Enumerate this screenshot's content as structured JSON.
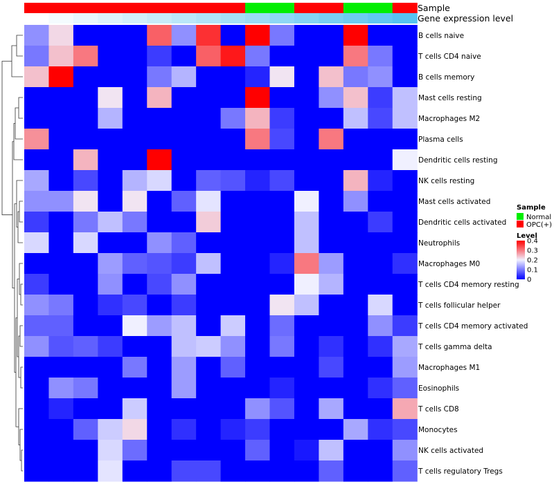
{
  "chart_data": {
    "type": "heatmap",
    "rows": [
      "B cells naive",
      "T cells CD4 naive",
      "B cells memory",
      "Mast cells resting",
      "Macrophages M2",
      "Plasma cells",
      "Dendritic cells resting",
      "NK cells resting",
      "Mast cells activated",
      "Dendritic cells activated",
      "Neutrophils",
      "Macrophages M0",
      "T cells CD4 memory resting",
      "T cells follicular helper",
      "T cells CD4 memory activated",
      "T cells gamma delta",
      "Macrophages M1",
      "Eosinophils",
      "T cells CD8",
      "Monocytes",
      "NK cells activated",
      "T cells regulatory  Tregs"
    ],
    "column_samples": [
      "OPC(+)",
      "OPC(+)",
      "OPC(+)",
      "OPC(+)",
      "OPC(+)",
      "OPC(+)",
      "OPC(+)",
      "OPC(+)",
      "OPC(+)",
      "Normal",
      "Normal",
      "OPC(+)",
      "OPC(+)",
      "Normal",
      "Normal",
      "OPC(+)"
    ],
    "gene_expression_level": [
      0.0,
      0.02,
      0.04,
      0.06,
      0.08,
      0.1,
      0.12,
      0.14,
      0.16,
      0.18,
      0.2,
      0.22,
      0.24,
      0.26,
      0.28,
      0.3
    ],
    "values": [
      [
        0.12,
        0.22,
        0,
        0,
        0,
        0.32,
        0.12,
        0.36,
        0,
        0.42,
        0.1,
        0,
        0,
        0.42,
        0,
        0
      ],
      [
        0.1,
        0.24,
        0.3,
        0,
        0,
        0.05,
        0,
        0.32,
        0.38,
        0.1,
        0,
        0,
        0,
        0.3,
        0.1,
        0
      ],
      [
        0.24,
        0.4,
        0,
        0,
        0,
        0.1,
        0.15,
        0,
        0,
        0.03,
        0.21,
        0,
        0.24,
        0.1,
        0.12,
        0
      ],
      [
        0,
        0,
        0,
        0.21,
        0,
        0.25,
        0,
        0,
        0,
        0.4,
        0,
        0,
        0.12,
        0.24,
        0.05,
        0.16
      ],
      [
        0,
        0,
        0,
        0.15,
        0,
        0,
        0,
        0,
        0.1,
        0.25,
        0.05,
        0,
        0,
        0.16,
        0.06,
        0.16
      ],
      [
        0.28,
        0,
        0,
        0,
        0,
        0,
        0,
        0,
        0,
        0.3,
        0.06,
        0,
        0.3,
        0,
        0,
        0
      ],
      [
        0,
        0,
        0.25,
        0,
        0,
        0.4,
        0,
        0,
        0,
        0,
        0,
        0,
        0,
        0,
        0,
        0.2
      ],
      [
        0.14,
        0,
        0.06,
        0,
        0.15,
        0.18,
        0,
        0.08,
        0.07,
        0.03,
        0.06,
        0,
        0,
        0.25,
        0.03,
        0
      ],
      [
        0.12,
        0.12,
        0.21,
        0,
        0.21,
        0,
        0.08,
        0.19,
        0,
        0,
        0,
        0.2,
        0,
        0.12,
        0,
        0
      ],
      [
        0.05,
        0,
        0.1,
        0.16,
        0.1,
        0,
        0,
        0.23,
        0,
        0,
        0,
        0.16,
        0,
        0,
        0.05,
        0
      ],
      [
        0.18,
        0,
        0.18,
        0,
        0,
        0.12,
        0.08,
        0,
        0,
        0,
        0,
        0.16,
        0,
        0,
        0,
        0
      ],
      [
        0,
        0,
        0,
        0.13,
        0.08,
        0.07,
        0.05,
        0.16,
        0,
        0,
        0.03,
        0.3,
        0.13,
        0,
        0,
        0.04
      ],
      [
        0.05,
        0,
        0,
        0.12,
        0,
        0.06,
        0.12,
        0,
        0,
        0,
        0,
        0.2,
        0.15,
        0,
        0,
        0
      ],
      [
        0.12,
        0.1,
        0,
        0.04,
        0.06,
        0,
        0.05,
        0,
        0,
        0,
        0.21,
        0.16,
        0,
        0,
        0.18,
        0
      ],
      [
        0.08,
        0.08,
        0,
        0,
        0.2,
        0.13,
        0.16,
        0,
        0.17,
        0,
        0.09,
        0,
        0,
        0,
        0.12,
        0.05
      ],
      [
        0.12,
        0.07,
        0.08,
        0.05,
        0,
        0,
        0.16,
        0.17,
        0.12,
        0,
        0.1,
        0,
        0.04,
        0,
        0.04,
        0.14
      ],
      [
        0,
        0,
        0,
        0,
        0.1,
        0,
        0.13,
        0,
        0.08,
        0,
        0,
        0,
        0.06,
        0,
        0,
        0.13
      ],
      [
        0,
        0.12,
        0.1,
        0,
        0,
        0,
        0.13,
        0,
        0,
        0,
        0.03,
        0,
        0,
        0,
        0.04,
        0.08
      ],
      [
        0,
        0.03,
        0,
        0,
        0.17,
        0,
        0,
        0,
        0,
        0.12,
        0.07,
        0,
        0.14,
        0,
        0,
        0.26
      ],
      [
        0,
        0,
        0.08,
        0.17,
        0.22,
        0,
        0.04,
        0,
        0.03,
        0.05,
        0,
        0,
        0,
        0.14,
        0.04,
        0.06
      ],
      [
        0,
        0,
        0,
        0.18,
        0.09,
        0,
        0,
        0,
        0,
        0.08,
        0,
        0.02,
        0.16,
        0,
        0,
        0.12
      ],
      [
        0,
        0,
        0,
        0.19,
        0,
        0,
        0.06,
        0.06,
        0,
        0,
        0,
        0,
        0.08,
        0,
        0,
        0.08
      ]
    ],
    "annotation_labels": [
      "Sample",
      "Gene expression level"
    ],
    "legend": {
      "sample_title": "Sample",
      "sample_entries": [
        {
          "label": "Normal",
          "color": "#00ee00"
        },
        {
          "label": "OPC(+)",
          "color": "#ff0000"
        }
      ],
      "level_title": "Level",
      "level_ticks": [
        {
          "value": 0.4,
          "label": "0.4"
        },
        {
          "value": 0.3,
          "label": "0.3"
        },
        {
          "value": 0.2,
          "label": "0.2"
        },
        {
          "value": 0.1,
          "label": "0.1"
        },
        {
          "value": 0,
          "label": "0"
        }
      ]
    },
    "color_scale": {
      "low": "#0000ff",
      "mid": "#f0f0ff",
      "high": "#ff0000",
      "min": 0,
      "max": 0.4
    },
    "gene_level_colors": {
      "low": "#ffffff",
      "high": "#56c3f0"
    },
    "dendrogram": "rows"
  }
}
